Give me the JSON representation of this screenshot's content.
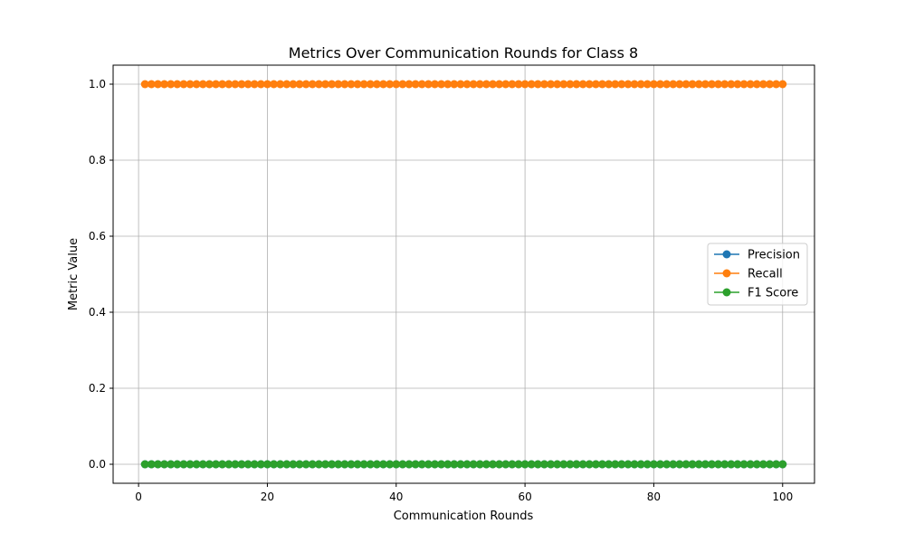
{
  "chart_data": {
    "type": "line",
    "title": "Metrics Over Communication Rounds for Class 8",
    "xlabel": "Communication Rounds",
    "ylabel": "Metric Value",
    "xlim": [
      -3.95,
      104.95
    ],
    "ylim": [
      -0.05,
      1.05
    ],
    "xticks": [
      0,
      20,
      40,
      60,
      80,
      100
    ],
    "yticks": [
      0.0,
      0.2,
      0.4,
      0.6,
      0.8,
      1.0
    ],
    "xtick_labels": [
      "0",
      "20",
      "40",
      "60",
      "80",
      "100"
    ],
    "ytick_labels": [
      "0.0",
      "0.2",
      "0.4",
      "0.6",
      "0.8",
      "1.0"
    ],
    "grid": true,
    "legend_position": "center-right",
    "x": {
      "start": 1,
      "end": 100,
      "step": 1
    },
    "series": [
      {
        "name": "Precision",
        "color": "#1f77b4",
        "value": 0.0
      },
      {
        "name": "Recall",
        "color": "#ff7f0e",
        "value": 1.0
      },
      {
        "name": "F1 Score",
        "color": "#2ca02c",
        "value": 0.0
      }
    ]
  }
}
